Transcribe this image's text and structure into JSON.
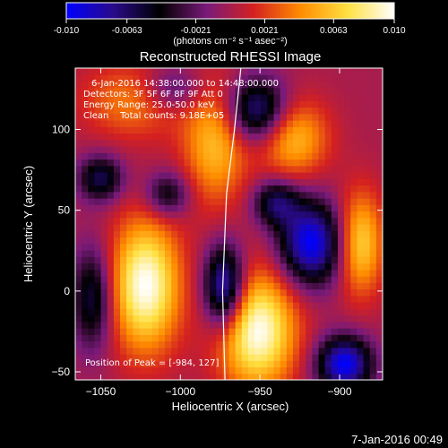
{
  "colorbar": {
    "tick_labels": [
      "-0.010",
      "-0.0063",
      "-0.0021",
      "0.0021",
      "0.0063",
      "0.010"
    ],
    "tick_values": [
      -0.01,
      -0.0063,
      -0.0021,
      0.0021,
      0.0063,
      0.01
    ],
    "range": [
      -0.01,
      0.01
    ],
    "units_label": "(photons cm⁻² s⁻¹ asec⁻²)",
    "colormap": [
      "#0000ff",
      "#2a0a8a",
      "#000000",
      "#7a1a7a",
      "#d42020",
      "#ff8c00",
      "#ffe040",
      "#ffffff"
    ]
  },
  "chart_data": {
    "type": "heatmap",
    "title": "Reconstructed RHESSI Image",
    "xlabel": "Heliocentric X (arcsec)",
    "ylabel": "Heliocentric Y (arcsec)",
    "xlim": [
      -1066,
      -873
    ],
    "ylim": [
      -55,
      138
    ],
    "x_ticks": [
      -1050,
      -1000,
      -950,
      -900
    ],
    "x_tick_labels": [
      "−1050",
      "−1000",
      "−950",
      "−900"
    ],
    "y_ticks": [
      -50,
      0,
      50,
      100
    ],
    "y_tick_labels": [
      "−50",
      "0",
      "50",
      "100"
    ],
    "value_range": [
      -0.01,
      0.01
    ],
    "blobs": [
      {
        "x": -1022,
        "y": 4,
        "sx": 15,
        "sy": 28,
        "v": 0.01
      },
      {
        "x": -952,
        "y": -24,
        "sx": 17,
        "sy": 25,
        "v": 0.01
      },
      {
        "x": -978,
        "y": 92,
        "sx": 14,
        "sy": 26,
        "v": 0.006
      },
      {
        "x": -1030,
        "y": 118,
        "sx": 22,
        "sy": 16,
        "v": 0.004
      },
      {
        "x": -929,
        "y": 95,
        "sx": 15,
        "sy": 17,
        "v": 0.006
      },
      {
        "x": -887,
        "y": 30,
        "sx": 10,
        "sy": 22,
        "v": 0.007
      },
      {
        "x": -1055,
        "y": -4,
        "sx": 9,
        "sy": 22,
        "v": -0.006
      },
      {
        "x": -972,
        "y": 2,
        "sx": 9,
        "sy": 18,
        "v": -0.01
      },
      {
        "x": -918,
        "y": 30,
        "sx": 14,
        "sy": 18,
        "v": -0.01
      },
      {
        "x": -952,
        "y": 112,
        "sx": 14,
        "sy": 14,
        "v": -0.008
      },
      {
        "x": -897,
        "y": -45,
        "sx": 12,
        "sy": 12,
        "v": -0.01
      },
      {
        "x": -1050,
        "y": 70,
        "sx": 10,
        "sy": 10,
        "v": -0.006
      },
      {
        "x": -1008,
        "y": 60,
        "sx": 10,
        "sy": 10,
        "v": -0.005
      },
      {
        "x": -1005,
        "y": 125,
        "sx": 14,
        "sy": 10,
        "v": -0.004
      },
      {
        "x": -940,
        "y": 55,
        "sx": 10,
        "sy": 10,
        "v": -0.006
      }
    ],
    "limb_curve": [
      [
        -972,
        -55
      ],
      [
        -973.5,
        0
      ],
      [
        -971,
        60
      ],
      [
        -966,
        100
      ],
      [
        -962,
        138
      ]
    ]
  },
  "annotations": {
    "time_range": "6-Jan-2016 14:38:00.000 to 14:48:00.000",
    "detectors": "Detectors: 3F 5F 6F 8F 9F  Att 0",
    "energy": "Energy Range: 25.0-50.0 keV",
    "clean": "Clean    Total counts: 9.18E+05",
    "peak": "Position of Peak = [-984, 127]"
  },
  "footer": {
    "timestamp": "7-Jan-2016 00:49"
  }
}
